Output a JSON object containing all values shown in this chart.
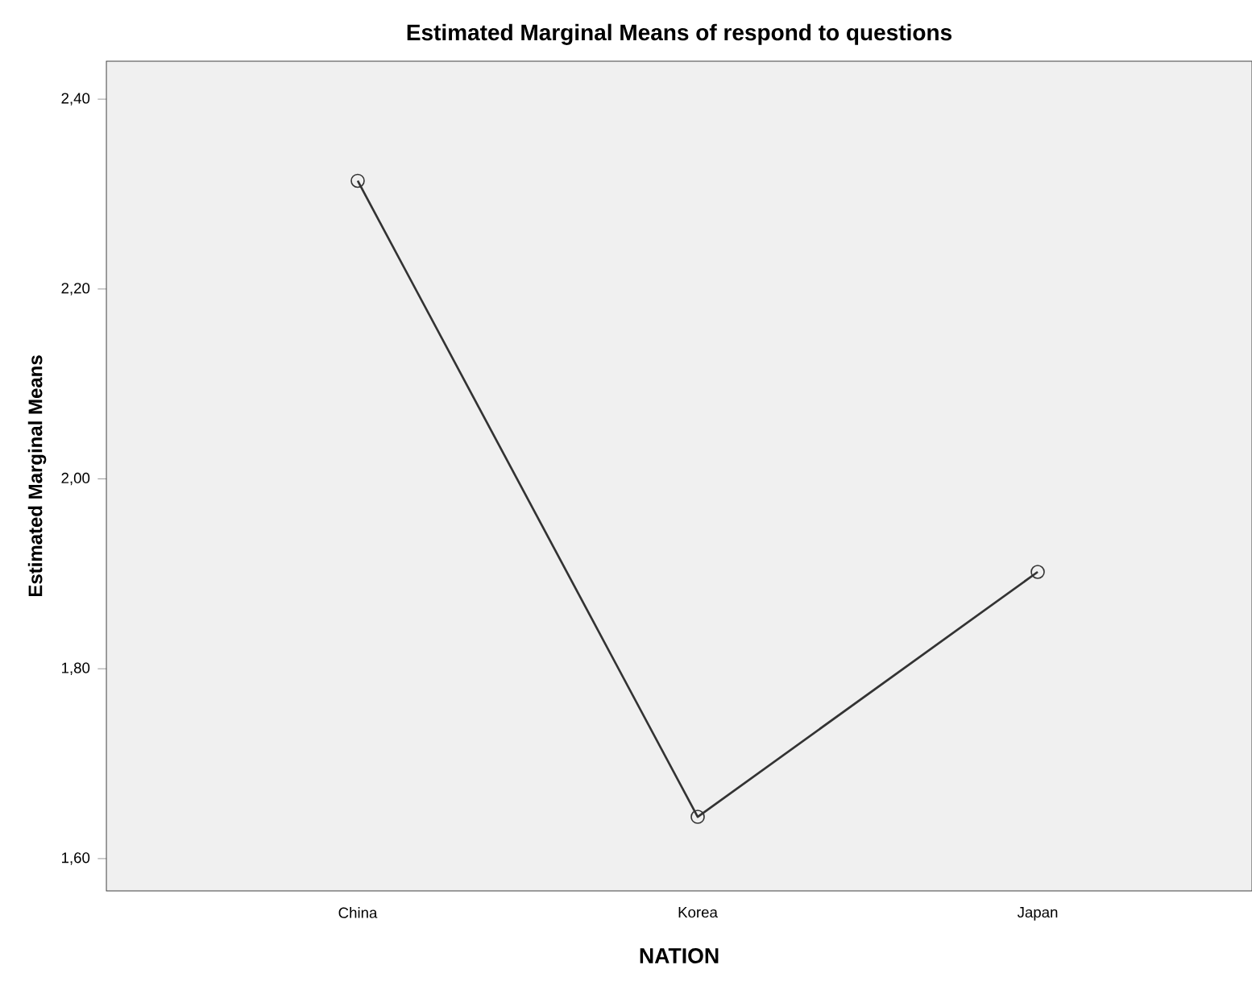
{
  "chart_data": {
    "type": "line",
    "title": "Estimated Marginal Means of respond to questions",
    "xlabel": "NATION",
    "ylabel": "Estimated Marginal Means",
    "categories": [
      "China",
      "Korea",
      "Japan"
    ],
    "series": [
      {
        "color": "#333333",
        "values": [
          2.314,
          1.644,
          1.902
        ]
      }
    ],
    "ylim": [
      1.566,
      2.44
    ],
    "yticks": [
      {
        "value": 1.6,
        "label": "1,60"
      },
      {
        "value": 1.8,
        "label": "1,80"
      },
      {
        "value": 2.0,
        "label": "2,00"
      },
      {
        "value": 2.2,
        "label": "2,20"
      },
      {
        "value": 2.4,
        "label": "2,40"
      }
    ],
    "marker": "circle",
    "line_style": "solid"
  }
}
